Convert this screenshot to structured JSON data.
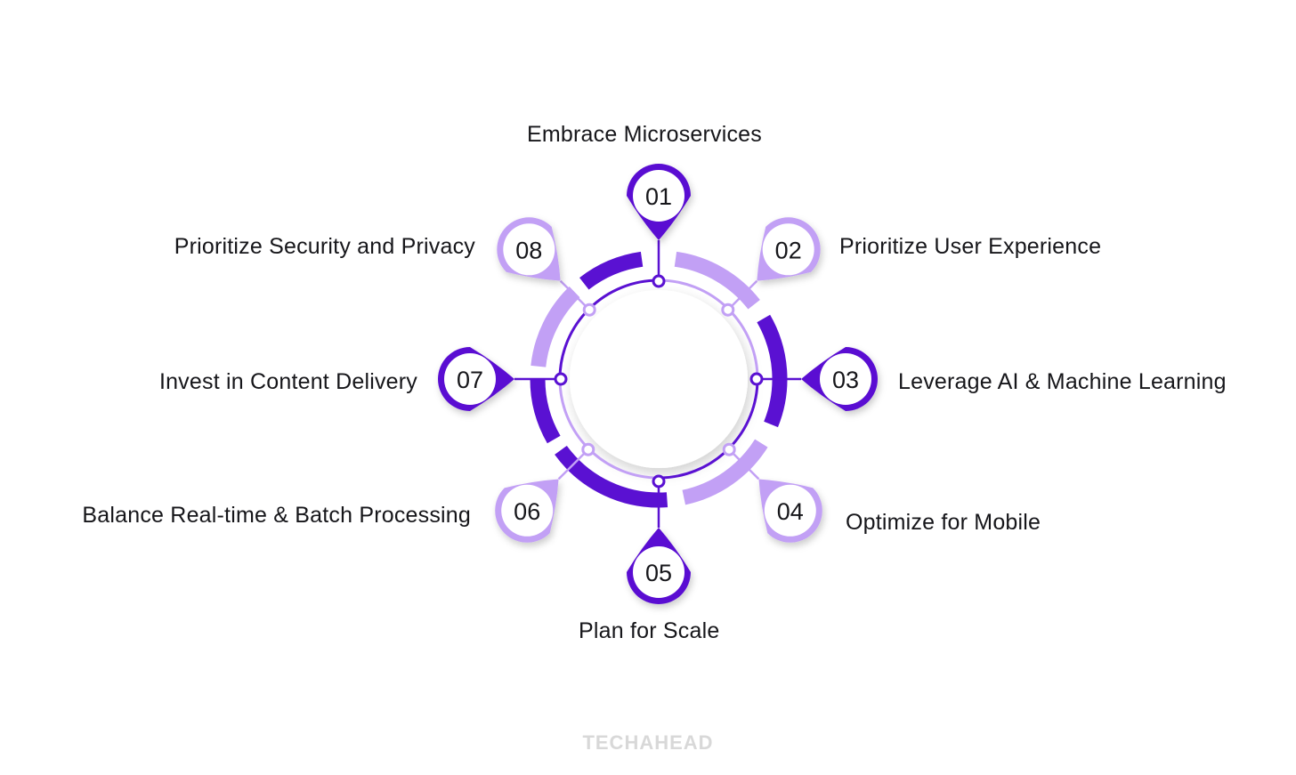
{
  "colors": {
    "dark": "#5a11d2",
    "light": "#c2a0f5",
    "text": "#16161a",
    "brand": "#d8d8d8"
  },
  "steps": [
    {
      "number": "01",
      "label": "Embrace Microservices",
      "tone": "dark"
    },
    {
      "number": "02",
      "label": "Prioritize User Experience",
      "tone": "light"
    },
    {
      "number": "03",
      "label": "Leverage AI & Machine Learning",
      "tone": "dark"
    },
    {
      "number": "04",
      "label": "Optimize for Mobile",
      "tone": "light"
    },
    {
      "number": "05",
      "label": "Plan for Scale",
      "tone": "dark"
    },
    {
      "number": "06",
      "label": "Balance Real-time & Batch Processing",
      "tone": "light"
    },
    {
      "number": "07",
      "label": "Invest in Content Delivery",
      "tone": "dark"
    },
    {
      "number": "08",
      "label": "Prioritize Security and Privacy",
      "tone": "light"
    }
  ],
  "brand": "TECHAHEAD"
}
